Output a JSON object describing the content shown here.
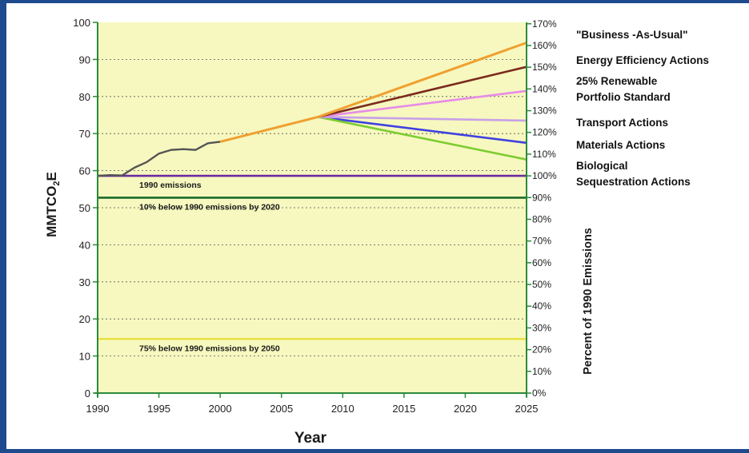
{
  "chart_data": {
    "type": "line",
    "xlabel": "Year",
    "ylabel_main": "MMTCO",
    "ylabel_sub": "2",
    "ylabel_tail": "E",
    "y2label": "Percent of 1990 Emissions",
    "xlim": [
      1990,
      2025
    ],
    "ylim": [
      0,
      100
    ],
    "x_ticks": [
      "1990",
      "1995",
      "2000",
      "2005",
      "2010",
      "2015",
      "2020",
      "2025"
    ],
    "y_ticks": [
      "0",
      "10",
      "20",
      "30",
      "40",
      "50",
      "60",
      "70",
      "80",
      "90",
      "100"
    ],
    "y2_ticks": [
      "0%",
      "10%",
      "20%",
      "30%",
      "40%",
      "50%",
      "60%",
      "70%",
      "80%",
      "90%",
      "100%",
      "110%",
      "120%",
      "130%",
      "140%",
      "150%",
      "160%",
      "170%"
    ],
    "grid": true,
    "legend_position": "right",
    "colors": {
      "plot_bg": "#f6f8bf",
      "axis": "#2a8a3a",
      "historical": "#555555",
      "business_as_usual": "#f0a030",
      "energy_efficiency": "#7b2a1e",
      "renewable": "#e88ae8",
      "transport": "#c8a0e8",
      "materials": "#4040e0",
      "biological": "#7ccc30",
      "ref_1990": "#6a2aa0",
      "ref_2020": "#1a6a2a",
      "ref_2050": "#e8e040"
    },
    "historical": {
      "x": [
        1990,
        1991,
        1992,
        1993,
        1994,
        1995,
        1996,
        1997,
        1998,
        1999,
        2000
      ],
      "y": [
        58.6,
        58.8,
        58.7,
        60.8,
        62.3,
        64.6,
        65.6,
        65.8,
        65.6,
        67.4,
        67.8
      ]
    },
    "series": [
      {
        "name": "\"Business -As-Usual\"",
        "key": "business_as_usual",
        "x": [
          2000,
          2008,
          2025
        ],
        "y": [
          67.8,
          74.5,
          94.5
        ]
      },
      {
        "name": "Energy Efficiency Actions",
        "key": "energy_efficiency",
        "x": [
          2008,
          2025
        ],
        "y": [
          74.5,
          88.0
        ]
      },
      {
        "name": "25% Renewable",
        "name_line2": "Portfolio Standard",
        "key": "renewable",
        "x": [
          2008,
          2025
        ],
        "y": [
          74.5,
          81.5
        ]
      },
      {
        "name": "Transport Actions",
        "key": "transport",
        "x": [
          2008,
          2025
        ],
        "y": [
          74.5,
          73.5
        ]
      },
      {
        "name": "Materials Actions",
        "key": "materials",
        "x": [
          2008,
          2025
        ],
        "y": [
          74.5,
          67.5
        ]
      },
      {
        "name": "Biological",
        "name_line2": "Sequestration Actions",
        "key": "biological",
        "x": [
          2008,
          2025
        ],
        "y": [
          74.5,
          63.0
        ]
      }
    ],
    "reference_lines": [
      {
        "label": "1990 emissions",
        "key": "ref_1990",
        "y": 58.6
      },
      {
        "label": "10% below 1990 emissions by 2020",
        "key": "ref_2020",
        "y": 52.7
      },
      {
        "label": "75% below 1990  emissions by 2050",
        "key": "ref_2050",
        "y": 14.6
      }
    ]
  }
}
